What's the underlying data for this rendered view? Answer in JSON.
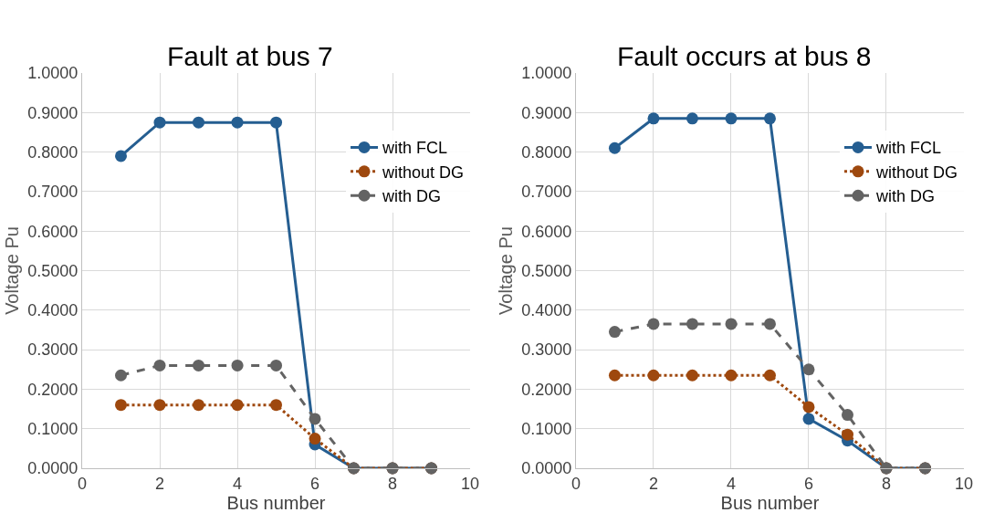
{
  "chart_data": [
    {
      "type": "line",
      "title": "Fault at bus 7",
      "xlabel": "Bus number",
      "ylabel": "Voltage Pu",
      "x": [
        1,
        2,
        3,
        4,
        5,
        6,
        7,
        8,
        9
      ],
      "series": [
        {
          "name": "with FCL",
          "color": "#255e91",
          "line_style": "solid",
          "values": [
            0.79,
            0.875,
            0.875,
            0.875,
            0.875,
            0.06,
            0,
            0,
            0
          ]
        },
        {
          "name": "without DG",
          "color": "#9e480e",
          "line_style": "dotted",
          "values": [
            0.16,
            0.16,
            0.16,
            0.16,
            0.16,
            0.075,
            0,
            0,
            0
          ]
        },
        {
          "name": "with DG",
          "color": "#636363",
          "line_style": "dashed",
          "values": [
            0.235,
            0.26,
            0.26,
            0.26,
            0.26,
            0.125,
            0,
            0,
            0
          ]
        }
      ],
      "marker": "circle",
      "grid": true,
      "legend": "right",
      "xlim": [
        0,
        10
      ],
      "xticks": [
        0,
        2,
        4,
        6,
        8,
        10
      ],
      "ylim": [
        0,
        1
      ],
      "yticks": [
        {
          "value": 0,
          "label": "0.0000"
        },
        {
          "value": 0.1,
          "label": "0.1000"
        },
        {
          "value": 0.2,
          "label": "0.2000"
        },
        {
          "value": 0.3,
          "label": "0.3000"
        },
        {
          "value": 0.4,
          "label": "0.4000"
        },
        {
          "value": 0.5,
          "label": "0.5000"
        },
        {
          "value": 0.6,
          "label": "0.6000"
        },
        {
          "value": 0.7,
          "label": "0.7000"
        },
        {
          "value": 0.8,
          "label": "0.8000"
        },
        {
          "value": 0.9,
          "label": "0.9000"
        },
        {
          "value": 1,
          "label": "1.0000"
        }
      ]
    },
    {
      "type": "line",
      "title": "Fault occurs at bus 8",
      "xlabel": "Bus number",
      "ylabel": "Voltage Pu",
      "x": [
        1,
        2,
        3,
        4,
        5,
        6,
        7,
        8,
        9
      ],
      "series": [
        {
          "name": "with FCL",
          "color": "#255e91",
          "line_style": "solid",
          "values": [
            0.81,
            0.885,
            0.885,
            0.885,
            0.885,
            0.125,
            0.07,
            0,
            0
          ]
        },
        {
          "name": "without DG",
          "color": "#9e480e",
          "line_style": "dotted",
          "values": [
            0.235,
            0.235,
            0.235,
            0.235,
            0.235,
            0.155,
            0.085,
            0,
            0
          ]
        },
        {
          "name": "with DG",
          "color": "#636363",
          "line_style": "dashed",
          "values": [
            0.345,
            0.365,
            0.365,
            0.365,
            0.365,
            0.25,
            0.135,
            0,
            0
          ]
        }
      ],
      "marker": "circle",
      "grid": true,
      "legend": "right",
      "xlim": [
        0,
        10
      ],
      "xticks": [
        0,
        2,
        4,
        6,
        8,
        10
      ],
      "ylim": [
        0,
        1
      ],
      "yticks": [
        {
          "value": 0,
          "label": "0.0000"
        },
        {
          "value": 0.1,
          "label": "0.1000"
        },
        {
          "value": 0.2,
          "label": "0.2000"
        },
        {
          "value": 0.3,
          "label": "0.3000"
        },
        {
          "value": 0.4,
          "label": "0.4000"
        },
        {
          "value": 0.5,
          "label": "0.5000"
        },
        {
          "value": 0.6,
          "label": "0.6000"
        },
        {
          "value": 0.7,
          "label": "0.7000"
        },
        {
          "value": 0.8,
          "label": "0.8000"
        },
        {
          "value": 0.9,
          "label": "0.9000"
        },
        {
          "value": 1,
          "label": "1.0000"
        }
      ]
    }
  ]
}
